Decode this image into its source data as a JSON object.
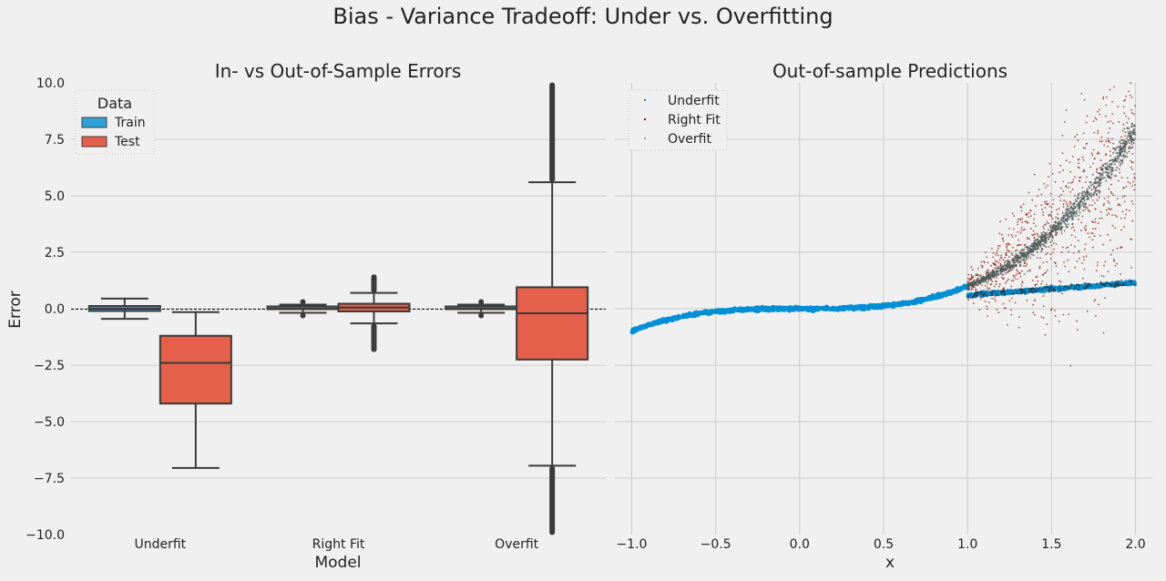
{
  "suptitle": "Bias - Variance Tradeoff: Under vs. Overfitting",
  "colors": {
    "background": "#f0f0f0",
    "grid": "#cbcbcb",
    "train": "#30a2da",
    "test": "#e5604b",
    "box_edge": "#3a3a3a",
    "blue_points": "#008fd5",
    "red_points": "#8b1a0e",
    "gray_points": "#4d5a57"
  },
  "chart_data": [
    {
      "type": "box",
      "title": "In- vs Out-of-Sample Errors",
      "xlabel": "Model",
      "ylabel": "Error",
      "categories": [
        "Underfit",
        "Right Fit",
        "Overfit"
      ],
      "ylim": [
        -10,
        10
      ],
      "yticks": [
        -10,
        -7.5,
        -5,
        -2.5,
        0,
        2.5,
        5,
        7.5,
        10
      ],
      "ytick_labels": [
        "−10.0",
        "−7.5",
        "−5.0",
        "−2.5",
        "0.0",
        "2.5",
        "5.0",
        "7.5",
        "10.0"
      ],
      "grid": "horizontal",
      "reference_line": 0,
      "legend": {
        "title": "Data",
        "position": "top-left",
        "entries": [
          "Train",
          "Test"
        ]
      },
      "series": [
        {
          "name": "Train",
          "boxes": [
            {
              "category": "Underfit",
              "whisker_low": -0.45,
              "q1": -0.1,
              "median": 0.0,
              "q3": 0.12,
              "whisker_high": 0.45,
              "outlier_range": null
            },
            {
              "category": "Right Fit",
              "whisker_low": -0.18,
              "q1": -0.04,
              "median": 0.0,
              "q3": 0.04,
              "whisker_high": 0.18,
              "outlier_range": [
                -0.3,
                0.3
              ]
            },
            {
              "category": "Overfit",
              "whisker_low": -0.18,
              "q1": -0.04,
              "median": 0.0,
              "q3": 0.04,
              "whisker_high": 0.18,
              "outlier_range": [
                -0.3,
                0.3
              ]
            }
          ]
        },
        {
          "name": "Test",
          "boxes": [
            {
              "category": "Underfit",
              "whisker_low": -7.05,
              "q1": -4.2,
              "median": -2.4,
              "q3": -1.2,
              "whisker_high": -0.15,
              "outlier_range": null
            },
            {
              "category": "Right Fit",
              "whisker_low": -0.65,
              "q1": -0.12,
              "median": 0.05,
              "q3": 0.22,
              "whisker_high": 0.7,
              "outlier_range": [
                -1.8,
                1.4
              ]
            },
            {
              "category": "Overfit",
              "whisker_low": -6.95,
              "q1": -2.25,
              "median": -0.2,
              "q3": 0.95,
              "whisker_high": 5.6,
              "outlier_range": [
                -9.9,
                9.9
              ]
            }
          ]
        }
      ]
    },
    {
      "type": "scatter",
      "title": "Out-of-sample Predictions",
      "xlabel": "x",
      "ylabel": "",
      "xlim": [
        -1.1,
        2.1
      ],
      "ylim": [
        -10,
        10
      ],
      "xticks": [
        -1.0,
        -0.5,
        0.0,
        0.5,
        1.0,
        1.5,
        2.0
      ],
      "xtick_labels": [
        "−1.0",
        "−0.5",
        "0.0",
        "0.5",
        "1.0",
        "1.5",
        "2.0"
      ],
      "grid": "both",
      "legend": {
        "position": "top-left",
        "entries": [
          "Underfit",
          "Right Fit",
          "Overfit"
        ]
      },
      "series": [
        {
          "name": "Underfit",
          "x_range": [
            1.0,
            2.0
          ],
          "curve": "linear",
          "y_start": 0.6,
          "y_end": 1.15,
          "spread": 0.18
        },
        {
          "name": "Right Fit",
          "x_range": [
            1.0,
            2.0
          ],
          "curve": "cubic",
          "y_start": 1.0,
          "y_end": 8.0,
          "spread": "wide"
        },
        {
          "name": "Overfit",
          "x_range": [
            1.0,
            2.0
          ],
          "curve": "cubic",
          "y_start": 1.0,
          "y_end": 8.0,
          "spread": 0.5
        },
        {
          "name": "Train",
          "x_range": [
            -1.0,
            1.0
          ],
          "curve": "cubic",
          "y_start": -0.95,
          "y_end": 1.0,
          "spread": 0.05
        }
      ]
    }
  ]
}
